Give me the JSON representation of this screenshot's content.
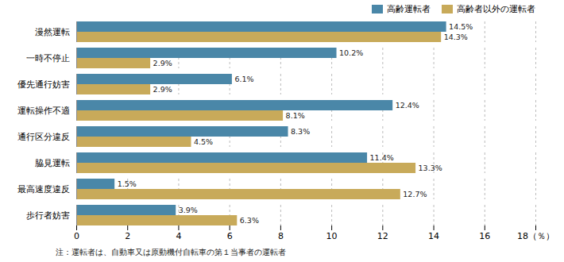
{
  "chart_data": {
    "type": "bar",
    "orientation": "horizontal",
    "categories": [
      "漫然運転",
      "一時不停止",
      "優先通行妨害",
      "運転操作不適",
      "通行区分違反",
      "脇見運転",
      "最高速度違反",
      "歩行者妨害"
    ],
    "series": [
      {
        "name": "高齢運転者",
        "color": "#4a87a8",
        "values": [
          14.5,
          10.2,
          6.1,
          12.4,
          8.3,
          11.4,
          1.5,
          3.9
        ],
        "value_labels": [
          "14.5%",
          "10.2%",
          "6.1%",
          "12.4%",
          "8.3%",
          "11.4%",
          "1.5%",
          "3.9%"
        ]
      },
      {
        "name": "高齢者以外の運転者",
        "color": "#c8aa5a",
        "values": [
          14.3,
          2.9,
          2.9,
          8.1,
          4.5,
          13.3,
          12.7,
          6.3
        ],
        "value_labels": [
          "14.3%",
          "2.9%",
          "2.9%",
          "8.1%",
          "4.5%",
          "13.3%",
          "12.7%",
          "6.3%"
        ]
      }
    ],
    "xlim": [
      0,
      18
    ],
    "xticks": [
      0,
      2,
      4,
      6,
      8,
      10,
      12,
      14,
      16,
      {
        "value": 18,
        "label": "18（％）"
      }
    ],
    "grid": true,
    "legend": "upper right",
    "data_labels": true,
    "annotations": [
      "注：運転者は、自動車又は原動機付自転車の第１当事者の運転者"
    ]
  }
}
